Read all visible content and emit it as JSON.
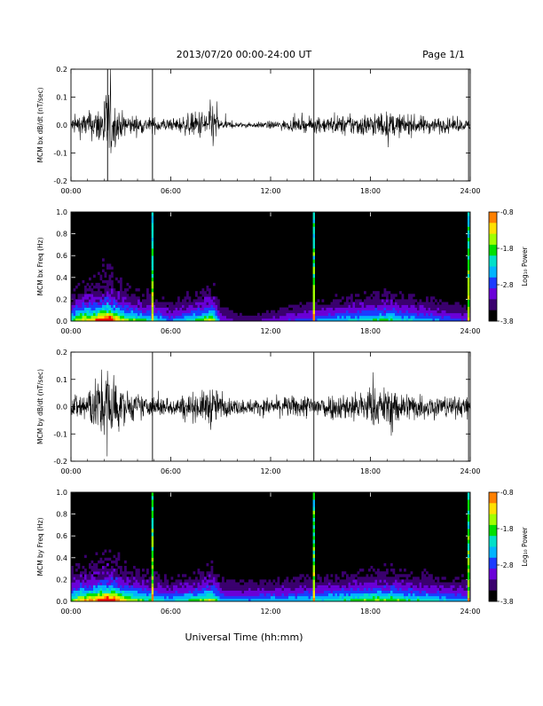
{
  "header": {
    "title": "2013/07/20  00:00-24:00 UT",
    "page": "Page 1/1"
  },
  "footer": {
    "xlabel": "Universal Time (hh:mm)"
  },
  "colorbar": {
    "label": "Log₁₀ Power",
    "ticks": [
      "-0.8",
      "-1.8",
      "-2.8",
      "-3.8"
    ],
    "colors": [
      "#000000",
      "#3a006e",
      "#6a00d8",
      "#1a3cff",
      "#00b4ff",
      "#00e0c8",
      "#00e000",
      "#a0ff00",
      "#ffe000",
      "#ff8000",
      "#ff0000"
    ]
  },
  "chart_data": [
    {
      "type": "line",
      "ylabel": "MCM bx dB/dt (nT/sec)",
      "xlim": [
        0,
        24
      ],
      "x_ticks": [
        "00:00",
        "06:00",
        "12:00",
        "18:00",
        "24:00"
      ],
      "ylim": [
        -0.2,
        0.2
      ],
      "y_ticks": [
        "0.2",
        "0.1",
        "0.0",
        "-0.1",
        "-0.2"
      ],
      "envelope": {
        "x_hours": [
          0,
          0.5,
          1.0,
          1.5,
          2.0,
          2.3,
          2.7,
          3.0,
          3.5,
          4.0,
          4.5,
          5.0,
          5.5,
          6.0,
          7.0,
          8.0,
          8.5,
          9.0,
          10.0,
          11.0,
          12.0,
          13.0,
          14.0,
          15.0,
          16.0,
          17.0,
          18.0,
          19.0,
          20.0,
          21.0,
          22.0,
          23.0,
          24.0
        ],
        "amplitude": [
          0.03,
          0.045,
          0.05,
          0.06,
          0.12,
          0.15,
          0.07,
          0.05,
          0.04,
          0.035,
          0.03,
          0.03,
          0.03,
          0.02,
          0.04,
          0.06,
          0.09,
          0.02,
          0.01,
          0.01,
          0.015,
          0.02,
          0.025,
          0.03,
          0.035,
          0.04,
          0.045,
          0.05,
          0.04,
          0.035,
          0.03,
          0.025,
          0.02
        ]
      },
      "spikes_hours": [
        2.2,
        4.9,
        14.6,
        23.9
      ]
    },
    {
      "type": "heatmap",
      "ylabel": "MCM bx Freq (Hz)",
      "xlim": [
        0,
        24
      ],
      "x_ticks": [
        "00:00",
        "06:00",
        "12:00",
        "18:00",
        "24:00"
      ],
      "ylim": [
        0,
        1
      ],
      "y_ticks": [
        "1.0",
        "0.8",
        "0.6",
        "0.4",
        "0.2",
        "0.0"
      ],
      "zlim": [
        -3.8,
        -0.8
      ],
      "activity": {
        "x_hours": [
          0,
          0.5,
          1.0,
          1.5,
          2.0,
          2.3,
          2.7,
          3.0,
          3.5,
          4.0,
          4.5,
          5.0,
          5.5,
          6.0,
          7.0,
          8.0,
          8.5,
          9.0,
          10.0,
          11.0,
          12.0,
          13.0,
          14.0,
          15.0,
          16.0,
          17.0,
          18.0,
          19.0,
          20.0,
          21.0,
          22.0,
          23.0,
          24.0
        ],
        "level": [
          0.5,
          0.7,
          0.75,
          0.8,
          1.0,
          1.0,
          0.85,
          0.7,
          0.6,
          0.55,
          0.5,
          0.45,
          0.4,
          0.3,
          0.45,
          0.6,
          0.7,
          0.25,
          0.15,
          0.15,
          0.2,
          0.25,
          0.3,
          0.35,
          0.4,
          0.45,
          0.5,
          0.55,
          0.45,
          0.4,
          0.35,
          0.3,
          0.25
        ]
      },
      "broadband_lines_hours": [
        4.9,
        14.6,
        23.9
      ]
    },
    {
      "type": "line",
      "ylabel": "MCM by dB/dt (nT/sec)",
      "xlim": [
        0,
        24
      ],
      "x_ticks": [
        "00:00",
        "06:00",
        "12:00",
        "18:00",
        "24:00"
      ],
      "ylim": [
        -0.2,
        0.2
      ],
      "y_ticks": [
        "0.2",
        "0.1",
        "0.0",
        "-0.1",
        "-0.2"
      ],
      "envelope": {
        "x_hours": [
          0,
          0.5,
          1.0,
          1.5,
          2.0,
          2.3,
          2.7,
          3.0,
          3.5,
          4.0,
          4.5,
          5.0,
          5.5,
          6.0,
          7.0,
          8.0,
          8.5,
          9.0,
          10.0,
          11.0,
          12.0,
          13.0,
          14.0,
          15.0,
          16.0,
          17.0,
          18.0,
          19.0,
          20.0,
          21.0,
          22.0,
          23.0,
          24.0
        ],
        "amplitude": [
          0.04,
          0.06,
          0.08,
          0.1,
          0.15,
          0.19,
          0.12,
          0.07,
          0.06,
          0.05,
          0.04,
          0.04,
          0.04,
          0.035,
          0.05,
          0.06,
          0.09,
          0.04,
          0.03,
          0.03,
          0.035,
          0.04,
          0.045,
          0.05,
          0.05,
          0.06,
          0.07,
          0.075,
          0.06,
          0.05,
          0.045,
          0.04,
          0.035
        ]
      },
      "spikes_hours": [
        4.9,
        14.6,
        23.9
      ]
    },
    {
      "type": "heatmap",
      "ylabel": "MCM by Freq (Hz)",
      "xlim": [
        0,
        24
      ],
      "x_ticks": [
        "00:00",
        "06:00",
        "12:00",
        "18:00",
        "24:00"
      ],
      "ylim": [
        0,
        1
      ],
      "y_ticks": [
        "1.0",
        "0.8",
        "0.6",
        "0.4",
        "0.2",
        "0.0"
      ],
      "zlim": [
        -3.8,
        -0.8
      ],
      "activity": {
        "x_hours": [
          0,
          0.5,
          1.0,
          1.5,
          2.0,
          2.3,
          2.7,
          3.0,
          3.5,
          4.0,
          4.5,
          5.0,
          5.5,
          6.0,
          7.0,
          8.0,
          8.5,
          9.0,
          10.0,
          11.0,
          12.0,
          13.0,
          14.0,
          15.0,
          16.0,
          17.0,
          18.0,
          19.0,
          20.0,
          21.0,
          22.0,
          23.0,
          24.0
        ],
        "level": [
          0.55,
          0.7,
          0.8,
          0.85,
          1.0,
          1.0,
          0.9,
          0.75,
          0.65,
          0.6,
          0.55,
          0.5,
          0.45,
          0.4,
          0.5,
          0.6,
          0.7,
          0.4,
          0.35,
          0.35,
          0.4,
          0.4,
          0.45,
          0.45,
          0.5,
          0.55,
          0.6,
          0.6,
          0.55,
          0.5,
          0.45,
          0.4,
          0.4
        ]
      },
      "broadband_lines_hours": [
        4.9,
        14.6,
        23.9
      ]
    }
  ]
}
